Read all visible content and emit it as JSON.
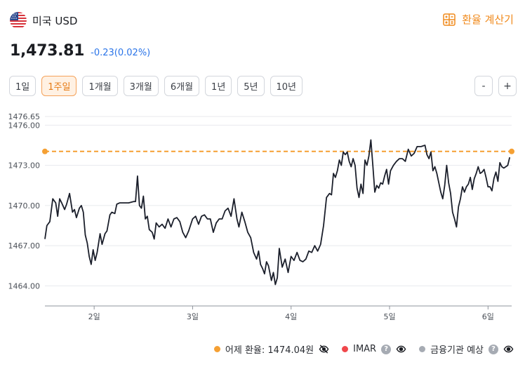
{
  "header": {
    "currency_name": "미국 USD",
    "flag_icon": "us-flag-icon",
    "calc_label": "환율 계산기",
    "calc_icon": "calculator-icon"
  },
  "rate": {
    "value": "1,473.81",
    "change": "-0.23(0.02%)"
  },
  "periods": [
    "1일",
    "1주일",
    "1개월",
    "3개월",
    "6개월",
    "1년",
    "5년",
    "10년"
  ],
  "active_period": "1주일",
  "zoom": {
    "out_label": "-",
    "in_label": "+"
  },
  "colors": {
    "accent": "#f08a1c",
    "line": "#1b1f2b",
    "change": "#2a74e8",
    "imar": "#f0474b",
    "institution": "#a6abb3"
  },
  "chart_data": {
    "type": "line",
    "yticks": [
      "1476.65",
      "1476.00",
      "1473.00",
      "1470.00",
      "1467.00",
      "1464.00"
    ],
    "ylim": [
      1462.5,
      1476.65
    ],
    "xticks": [
      {
        "label": "2일",
        "x": 0.5
      },
      {
        "label": "3일",
        "x": 1.5
      },
      {
        "label": "4일",
        "x": 2.5
      },
      {
        "label": "5일",
        "x": 3.5
      },
      {
        "label": "6일",
        "x": 4.5
      }
    ],
    "xlim": [
      0,
      4.74
    ],
    "reference_line": 1474.04,
    "series": [
      {
        "points": [
          [
            0.0,
            1467.5
          ],
          [
            0.02,
            1468.5
          ],
          [
            0.05,
            1468.8
          ],
          [
            0.08,
            1470.5
          ],
          [
            0.11,
            1470.2
          ],
          [
            0.13,
            1469.2
          ],
          [
            0.15,
            1470.5
          ],
          [
            0.17,
            1470.2
          ],
          [
            0.2,
            1469.7
          ],
          [
            0.22,
            1470.1
          ],
          [
            0.25,
            1470.9
          ],
          [
            0.28,
            1469.5
          ],
          [
            0.3,
            1469.7
          ],
          [
            0.32,
            1469.1
          ],
          [
            0.35,
            1469.8
          ],
          [
            0.37,
            1470.0
          ],
          [
            0.39,
            1469.5
          ],
          [
            0.41,
            1467.8
          ],
          [
            0.43,
            1467.2
          ],
          [
            0.45,
            1466.2
          ],
          [
            0.47,
            1465.6
          ],
          [
            0.49,
            1466.7
          ],
          [
            0.51,
            1465.9
          ],
          [
            0.53,
            1466.5
          ],
          [
            0.56,
            1467.9
          ],
          [
            0.58,
            1467.1
          ],
          [
            0.61,
            1467.9
          ],
          [
            0.63,
            1468.1
          ],
          [
            0.66,
            1469.3
          ],
          [
            0.68,
            1469.5
          ],
          [
            0.71,
            1469.4
          ],
          [
            0.73,
            1470.1
          ],
          [
            0.76,
            1470.2
          ],
          [
            0.8,
            1470.2
          ],
          [
            0.85,
            1470.2
          ],
          [
            0.9,
            1470.3
          ],
          [
            0.92,
            1470.3
          ],
          [
            0.94,
            1472.2
          ],
          [
            0.96,
            1470.0
          ],
          [
            0.98,
            1469.8
          ],
          [
            1.0,
            1470.7
          ],
          [
            1.02,
            1469.0
          ],
          [
            1.04,
            1469.2
          ],
          [
            1.06,
            1468.2
          ],
          [
            1.09,
            1468.0
          ],
          [
            1.11,
            1467.5
          ],
          [
            1.13,
            1468.7
          ],
          [
            1.16,
            1468.4
          ],
          [
            1.19,
            1468.6
          ],
          [
            1.22,
            1468.3
          ],
          [
            1.25,
            1469.0
          ],
          [
            1.28,
            1468.4
          ],
          [
            1.31,
            1469.0
          ],
          [
            1.34,
            1469.1
          ],
          [
            1.37,
            1468.8
          ],
          [
            1.4,
            1468.0
          ],
          [
            1.43,
            1467.6
          ],
          [
            1.46,
            1468.1
          ],
          [
            1.5,
            1469.0
          ],
          [
            1.53,
            1469.2
          ],
          [
            1.56,
            1468.6
          ],
          [
            1.59,
            1469.2
          ],
          [
            1.62,
            1469.3
          ],
          [
            1.65,
            1469.0
          ],
          [
            1.68,
            1469.0
          ],
          [
            1.71,
            1468.0
          ],
          [
            1.74,
            1468.7
          ],
          [
            1.77,
            1469.0
          ],
          [
            1.8,
            1469.0
          ],
          [
            1.83,
            1469.6
          ],
          [
            1.86,
            1469.8
          ],
          [
            1.89,
            1469.2
          ],
          [
            1.92,
            1470.5
          ],
          [
            1.95,
            1469.0
          ],
          [
            1.97,
            1468.4
          ],
          [
            2.0,
            1469.5
          ],
          [
            2.03,
            1468.8
          ],
          [
            2.06,
            1468.0
          ],
          [
            2.09,
            1467.6
          ],
          [
            2.12,
            1466.5
          ],
          [
            2.15,
            1466.0
          ],
          [
            2.17,
            1466.6
          ],
          [
            2.19,
            1465.6
          ],
          [
            2.21,
            1465.3
          ],
          [
            2.23,
            1464.9
          ],
          [
            2.25,
            1465.8
          ],
          [
            2.27,
            1465.5
          ],
          [
            2.3,
            1464.4
          ],
          [
            2.32,
            1465.0
          ],
          [
            2.34,
            1464.1
          ],
          [
            2.36,
            1464.6
          ],
          [
            2.38,
            1466.8
          ],
          [
            2.41,
            1465.4
          ],
          [
            2.44,
            1466.0
          ],
          [
            2.47,
            1465.0
          ],
          [
            2.5,
            1466.2
          ],
          [
            2.53,
            1465.9
          ],
          [
            2.56,
            1466.5
          ],
          [
            2.59,
            1465.9
          ],
          [
            2.62,
            1465.8
          ],
          [
            2.65,
            1466.0
          ],
          [
            2.68,
            1466.6
          ],
          [
            2.71,
            1466.5
          ],
          [
            2.74,
            1467.0
          ],
          [
            2.77,
            1466.6
          ],
          [
            2.8,
            1467.1
          ],
          [
            2.83,
            1468.5
          ],
          [
            2.86,
            1470.6
          ],
          [
            2.89,
            1470.9
          ],
          [
            2.91,
            1470.8
          ],
          [
            2.93,
            1472.4
          ],
          [
            2.95,
            1472.1
          ],
          [
            2.97,
            1472.6
          ],
          [
            2.99,
            1473.4
          ],
          [
            3.01,
            1473.0
          ],
          [
            3.03,
            1474.0
          ],
          [
            3.05,
            1473.8
          ],
          [
            3.07,
            1474.0
          ],
          [
            3.09,
            1473.3
          ],
          [
            3.11,
            1472.9
          ],
          [
            3.13,
            1473.5
          ],
          [
            3.15,
            1473.0
          ],
          [
            3.17,
            1471.3
          ],
          [
            3.19,
            1470.6
          ],
          [
            3.21,
            1471.6
          ],
          [
            3.23,
            1470.9
          ],
          [
            3.25,
            1473.4
          ],
          [
            3.27,
            1473.0
          ],
          [
            3.29,
            1473.7
          ],
          [
            3.31,
            1474.9
          ],
          [
            3.33,
            1473.0
          ],
          [
            3.35,
            1471.0
          ],
          [
            3.37,
            1471.5
          ],
          [
            3.39,
            1471.3
          ],
          [
            3.41,
            1471.7
          ],
          [
            3.43,
            1471.6
          ],
          [
            3.45,
            1472.2
          ],
          [
            3.47,
            1472.7
          ],
          [
            3.49,
            1471.6
          ],
          [
            3.51,
            1472.6
          ],
          [
            3.54,
            1473.0
          ],
          [
            3.57,
            1473.3
          ],
          [
            3.6,
            1473.5
          ],
          [
            3.63,
            1473.5
          ],
          [
            3.66,
            1473.3
          ],
          [
            3.69,
            1474.2
          ],
          [
            3.72,
            1473.7
          ],
          [
            3.75,
            1473.9
          ],
          [
            3.78,
            1474.4
          ],
          [
            3.82,
            1474.4
          ],
          [
            3.86,
            1474.5
          ],
          [
            3.88,
            1473.8
          ],
          [
            3.9,
            1473.5
          ],
          [
            3.92,
            1474.0
          ],
          [
            3.94,
            1472.6
          ],
          [
            3.96,
            1472.9
          ],
          [
            3.98,
            1472.4
          ],
          [
            4.0,
            1471.7
          ],
          [
            4.02,
            1471.0
          ],
          [
            4.04,
            1470.5
          ],
          [
            4.06,
            1471.5
          ],
          [
            4.08,
            1473.0
          ],
          [
            4.1,
            1471.7
          ],
          [
            4.12,
            1470.9
          ],
          [
            4.14,
            1469.5
          ],
          [
            4.16,
            1469.0
          ],
          [
            4.18,
            1468.4
          ],
          [
            4.2,
            1469.9
          ],
          [
            4.22,
            1470.5
          ],
          [
            4.24,
            1471.4
          ],
          [
            4.26,
            1471.0
          ],
          [
            4.28,
            1471.4
          ],
          [
            4.3,
            1471.6
          ],
          [
            4.32,
            1472.1
          ],
          [
            4.34,
            1471.2
          ],
          [
            4.36,
            1472.0
          ],
          [
            4.38,
            1472.4
          ],
          [
            4.4,
            1472.9
          ],
          [
            4.42,
            1472.4
          ],
          [
            4.44,
            1472.5
          ],
          [
            4.46,
            1472.7
          ],
          [
            4.48,
            1472.1
          ],
          [
            4.5,
            1471.4
          ],
          [
            4.52,
            1471.4
          ],
          [
            4.54,
            1471.1
          ],
          [
            4.56,
            1472.0
          ],
          [
            4.58,
            1472.5
          ],
          [
            4.6,
            1471.8
          ],
          [
            4.62,
            1473.2
          ],
          [
            4.64,
            1472.9
          ],
          [
            4.66,
            1472.8
          ],
          [
            4.68,
            1472.9
          ],
          [
            4.7,
            1473.0
          ],
          [
            4.72,
            1473.6
          ]
        ]
      }
    ]
  },
  "legend": {
    "yesterday": "어제 환율: 1474.04원",
    "imar": "IMAR",
    "institution": "금융기관 예상",
    "help_glyph": "?"
  }
}
